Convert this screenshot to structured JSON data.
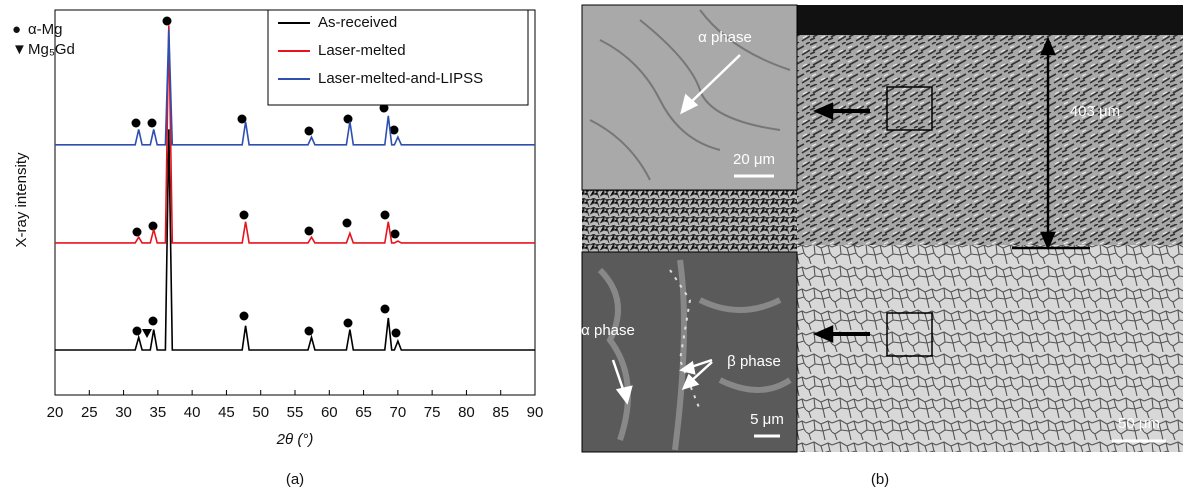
{
  "chart_data": {
    "type": "line",
    "xlabel": "2θ (°)",
    "ylabel": "X-ray intensity",
    "x": [
      20,
      31.7,
      32.2,
      32.7,
      33.9,
      34.4,
      34.9,
      36.1,
      36.6,
      37.1,
      47.3,
      47.8,
      48.3,
      56.9,
      57.4,
      57.9,
      62.5,
      63.0,
      63.5,
      68.1,
      68.6,
      69.1,
      69.5,
      70.0,
      70.5,
      90
    ],
    "series": [
      {
        "name": "As-received",
        "color": "#000000",
        "values": [
          11.7,
          11.7,
          15,
          11.7,
          11.7,
          17,
          11.7,
          11.7,
          69,
          11.7,
          11.7,
          18,
          11.7,
          11.7,
          15,
          11.7,
          11.7,
          17,
          11.7,
          11.7,
          20,
          11.7,
          11.7,
          14,
          11.7,
          11.7
        ]
      },
      {
        "name": "Laser-melted",
        "color": "#e8141c",
        "values": [
          39.5,
          39.5,
          41,
          39.5,
          39.5,
          43,
          39.5,
          39.5,
          96,
          39.5,
          39.5,
          45,
          39.5,
          39.5,
          41,
          39.5,
          39.5,
          42,
          39.5,
          39.5,
          45,
          39.5,
          39.5,
          40,
          39.5,
          39.5
        ]
      },
      {
        "name": "Laser-melted-and-LIPSS",
        "color": "#2f4fb0",
        "values": [
          65,
          65,
          69,
          65,
          65,
          69,
          65,
          65,
          95,
          65,
          65,
          71,
          65,
          65,
          67,
          65,
          65,
          71,
          65,
          65,
          72.5,
          65,
          65,
          67,
          65,
          65
        ]
      }
    ],
    "xlim": [
      20,
      90
    ],
    "xticks": [
      20,
      25,
      30,
      35,
      40,
      45,
      50,
      55,
      60,
      65,
      70,
      75,
      80,
      85,
      90
    ],
    "ylim": [
      0,
      100
    ],
    "phase_legend": [
      {
        "symbol": "●",
        "label": "α-Mg"
      },
      {
        "symbol": "▼",
        "label": "Mg₅Gd"
      }
    ],
    "legend": "upper right"
  },
  "panel_labels": [
    "(a)",
    "(b)"
  ],
  "micrograph": {
    "upper_inset": {
      "label": "α phase",
      "scale": "20 μm"
    },
    "depth": "403 μm",
    "lower_inset": {
      "label_alpha": "α phase",
      "label_beta": "β phase",
      "scale": "5 μm"
    },
    "scale": "50 μm"
  }
}
